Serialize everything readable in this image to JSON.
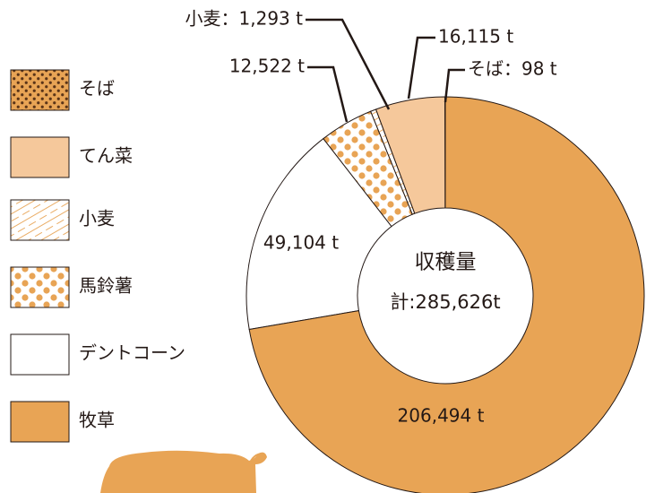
{
  "chart_data": {
    "type": "donut",
    "categories": [
      "そば",
      "てん菜",
      "小麦",
      "馬鈴薯",
      "デントコーン",
      "牧草"
    ],
    "values": [
      98,
      16115,
      1293,
      12522,
      49104,
      206494
    ],
    "value_labels": [
      "そば：98 t",
      "16,115 t",
      "小麦：1,293 t",
      "12,522 t",
      "49,104 t",
      "206,494 t"
    ],
    "colors": [
      "#e8a455",
      "#f5c89b",
      "#ffffff",
      "#ffffff",
      "#ffffff",
      "#e8a455"
    ],
    "patterns": [
      "dots-dark",
      "none",
      "lines",
      "dots",
      "none",
      "none"
    ],
    "center_title": "収穫量",
    "center_total": "計:285,626t"
  }
}
